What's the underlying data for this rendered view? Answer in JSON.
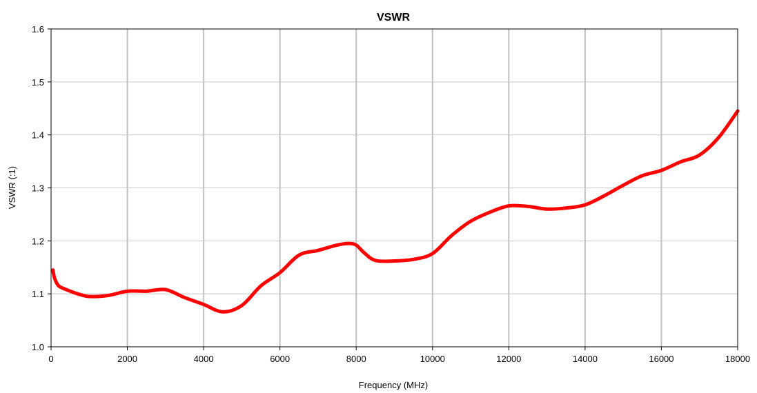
{
  "chart_data": {
    "type": "line",
    "title": "VSWR",
    "xlabel": "Frequency (MHz)",
    "ylabel": "VSWR (:1)",
    "xlim": [
      0,
      18000
    ],
    "ylim": [
      1.0,
      1.6
    ],
    "xticks": [
      0,
      2000,
      4000,
      6000,
      8000,
      10000,
      12000,
      14000,
      16000,
      18000
    ],
    "xtick_labels": [
      "0",
      "2000",
      "4000",
      "6000",
      "8000",
      "10000",
      "12000",
      "14000",
      "16000",
      "18000"
    ],
    "yticks": [
      1.0,
      1.1,
      1.2,
      1.3,
      1.4,
      1.5,
      1.6
    ],
    "ytick_labels": [
      "1.0",
      "1.1",
      "1.2",
      "1.3",
      "1.4",
      "1.5",
      "1.6"
    ],
    "grid": "vertical",
    "grid_color": "#c0c0c0",
    "line_color": "#ff0000",
    "legend": "none",
    "series": [
      {
        "x": [
          50,
          60,
          100,
          200,
          400,
          700,
          1000,
          1500,
          2000,
          2500,
          3000,
          3500,
          4000,
          4500,
          5000,
          5500,
          6000,
          6500,
          7000,
          7500,
          7800,
          8000,
          8200,
          8500,
          9000,
          9500,
          10000,
          10500,
          11000,
          11500,
          12000,
          12500,
          13000,
          13500,
          14000,
          14500,
          15000,
          15500,
          16000,
          16500,
          17000,
          17500,
          18000
        ],
        "values": [
          1.145,
          1.14,
          1.128,
          1.115,
          1.108,
          1.1,
          1.095,
          1.097,
          1.105,
          1.105,
          1.108,
          1.093,
          1.08,
          1.066,
          1.078,
          1.115,
          1.14,
          1.173,
          1.182,
          1.192,
          1.195,
          1.192,
          1.178,
          1.163,
          1.162,
          1.165,
          1.176,
          1.21,
          1.237,
          1.254,
          1.266,
          1.265,
          1.26,
          1.262,
          1.268,
          1.285,
          1.305,
          1.323,
          1.333,
          1.349,
          1.362,
          1.395,
          1.445
        ]
      }
    ]
  }
}
